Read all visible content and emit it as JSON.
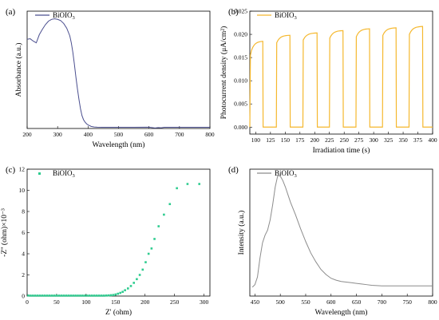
{
  "chart_data": [
    {
      "id": "a",
      "panel_label": "(a)",
      "type": "line",
      "xlabel": "Wavelength (nm)",
      "ylabel": "Absorbance (a.u.)",
      "xlim": [
        200,
        800
      ],
      "ylim": [
        0,
        1
      ],
      "xticks": [
        200,
        300,
        400,
        500,
        600,
        700,
        800
      ],
      "yticks": [],
      "legend_position": "top-left",
      "color": "#4b4f8f",
      "series": [
        {
          "name": "BiOIO3",
          "x": [
            200,
            210,
            220,
            230,
            240,
            250,
            260,
            270,
            280,
            290,
            300,
            310,
            320,
            330,
            340,
            345,
            350,
            355,
            360,
            365,
            370,
            375,
            380,
            385,
            390,
            395,
            400,
            410,
            420,
            430,
            450,
            500,
            550,
            600,
            620,
            630,
            640,
            650,
            700,
            750,
            800
          ],
          "y": [
            0.76,
            0.765,
            0.745,
            0.73,
            0.8,
            0.845,
            0.885,
            0.915,
            0.93,
            0.935,
            0.93,
            0.92,
            0.895,
            0.855,
            0.79,
            0.73,
            0.65,
            0.55,
            0.44,
            0.34,
            0.25,
            0.17,
            0.11,
            0.075,
            0.055,
            0.04,
            0.03,
            0.018,
            0.013,
            0.011,
            0.01,
            0.01,
            0.01,
            0.011,
            0.004,
            0.008,
            0.006,
            0.01,
            0.01,
            0.01,
            0.01
          ]
        }
      ]
    },
    {
      "id": "b",
      "panel_label": "(b)",
      "type": "line",
      "xlabel": "Irradiation time (s)",
      "ylabel": "Photocurrent density (μA/cm²)",
      "xlim": [
        90,
        400
      ],
      "ylim": [
        -0.0015,
        0.025
      ],
      "xticks": [
        100,
        125,
        150,
        175,
        200,
        225,
        250,
        275,
        300,
        325,
        350,
        375,
        400
      ],
      "yticks": [
        0.0,
        0.005,
        0.01,
        0.015,
        0.02,
        0.025
      ],
      "ytick_labels": [
        "0.000",
        "0.005",
        "0.010",
        "0.015",
        "0.020",
        "0.025"
      ],
      "legend_position": "top-left",
      "color": "#f5b82e",
      "series": [
        {
          "name": "BiOIO3",
          "on_intervals": [
            [
              90,
              112
            ],
            [
              135,
              158
            ],
            [
              180,
              204
            ],
            [
              225,
              248
            ],
            [
              270,
              293
            ],
            [
              315,
              338
            ],
            [
              360,
              383
            ]
          ],
          "on_peak": [
            0.0185,
            0.0198,
            0.0203,
            0.0208,
            0.0212,
            0.0214,
            0.0217
          ],
          "on_start": [
            0.0155,
            0.0182,
            0.0188,
            0.0192,
            0.0195,
            0.0198,
            0.02
          ],
          "off_value": 0.0,
          "x_end": 400
        }
      ]
    },
    {
      "id": "c",
      "panel_label": "(c)",
      "type": "scatter",
      "xlabel": "Z' (ohm)",
      "ylabel": "-Z'' (ohm)×10⁻³",
      "xlim": [
        0,
        310
      ],
      "ylim": [
        0,
        12
      ],
      "xticks": [
        0,
        50,
        100,
        150,
        200,
        250,
        300
      ],
      "yticks": [
        0,
        2,
        4,
        6,
        8,
        10,
        12
      ],
      "legend_position": "top-left",
      "color": "#2ecc8f",
      "series": [
        {
          "name": "BiOIO3",
          "x": [
            2,
            6,
            10,
            14,
            18,
            22,
            26,
            30,
            34,
            38,
            42,
            46,
            50,
            54,
            58,
            62,
            66,
            70,
            74,
            78,
            82,
            86,
            90,
            94,
            98,
            102,
            106,
            110,
            114,
            118,
            122,
            126,
            130,
            134,
            138,
            142,
            146,
            150,
            154,
            158,
            162,
            166,
            171,
            176,
            181,
            186,
            191,
            196,
            201,
            206,
            211,
            216,
            223,
            232,
            242,
            254,
            272,
            292
          ],
          "y": [
            0.05,
            0.04,
            0.04,
            0.04,
            0.04,
            0.04,
            0.04,
            0.04,
            0.04,
            0.04,
            0.04,
            0.04,
            0.04,
            0.04,
            0.04,
            0.04,
            0.04,
            0.04,
            0.04,
            0.04,
            0.04,
            0.04,
            0.04,
            0.04,
            0.04,
            0.04,
            0.04,
            0.04,
            0.04,
            0.04,
            0.04,
            0.04,
            0.04,
            0.05,
            0.06,
            0.08,
            0.1,
            0.15,
            0.22,
            0.3,
            0.4,
            0.55,
            0.72,
            0.95,
            1.25,
            1.6,
            2.0,
            2.5,
            3.2,
            4.0,
            4.5,
            5.4,
            6.6,
            7.7,
            8.7,
            10.2,
            10.6,
            10.6
          ]
        }
      ]
    },
    {
      "id": "d",
      "panel_label": "(d)",
      "type": "line",
      "xlabel": "Wavelength (nm)",
      "ylabel": "Intensity (a.u.)",
      "xlim": [
        440,
        800
      ],
      "ylim": [
        0,
        1
      ],
      "xticks": [
        450,
        500,
        550,
        600,
        650,
        700,
        750,
        800
      ],
      "yticks": [],
      "legend_position": "top-left",
      "color": "#8c8c8c",
      "series": [
        {
          "name": "BiOIO3",
          "x": [
            445,
            450,
            455,
            460,
            465,
            470,
            475,
            480,
            485,
            490,
            495,
            500,
            505,
            510,
            515,
            520,
            530,
            540,
            550,
            560,
            570,
            580,
            590,
            600,
            610,
            620,
            630,
            640,
            650,
            660,
            670,
            680,
            700,
            720,
            740,
            760,
            780,
            800
          ],
          "y": [
            0.07,
            0.09,
            0.15,
            0.3,
            0.42,
            0.48,
            0.52,
            0.6,
            0.72,
            0.86,
            0.95,
            0.945,
            0.91,
            0.86,
            0.8,
            0.74,
            0.64,
            0.53,
            0.43,
            0.34,
            0.27,
            0.21,
            0.17,
            0.14,
            0.125,
            0.115,
            0.11,
            0.105,
            0.1,
            0.095,
            0.09,
            0.085,
            0.08,
            0.08,
            0.08,
            0.08,
            0.08,
            0.08
          ]
        }
      ]
    }
  ]
}
